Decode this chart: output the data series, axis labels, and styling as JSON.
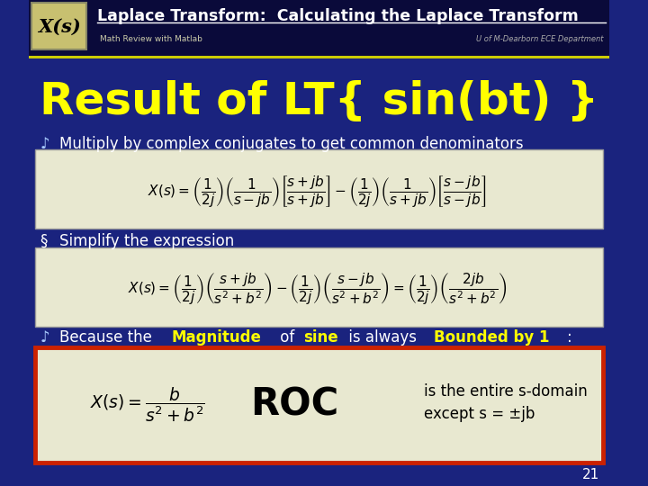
{
  "bg_color": "#1a237e",
  "header_bg": "#0a0a3a",
  "title_text": "Laplace Transform:  Calculating the Laplace Transform",
  "subtitle_left": "Math Review with Matlab",
  "subtitle_right": "U of M-Dearborn ECE Department",
  "xs_label": "X(s)",
  "main_title": "Result of LT{ sin(bt) }",
  "bullet1_text": "Multiply by complex conjugates to get common denominators",
  "bullet2_text": "Simplify the expression",
  "bullet3_text_parts": [
    "Because the ",
    "Magnitude",
    " of ",
    "sine",
    " is always ",
    "Bounded by 1",
    ":"
  ],
  "bullet3_colors": [
    "white",
    "#ffff00",
    "white",
    "#ffff00",
    "white",
    "#ffff00",
    "white"
  ],
  "bullet3_bold": [
    false,
    true,
    false,
    true,
    false,
    true,
    false
  ],
  "roc_text": "ROC",
  "roc_desc1": "is the entire s-domain",
  "roc_desc2": "except s = ±jb",
  "page_num": "21",
  "eq_box_color": "#e8e8d0",
  "roc_box_color": "#e8e8d0",
  "roc_box_border": "#cc2200",
  "header_line_color": "#cccc00",
  "xs_bg": "#c8c070",
  "xs_border": "#888866"
}
